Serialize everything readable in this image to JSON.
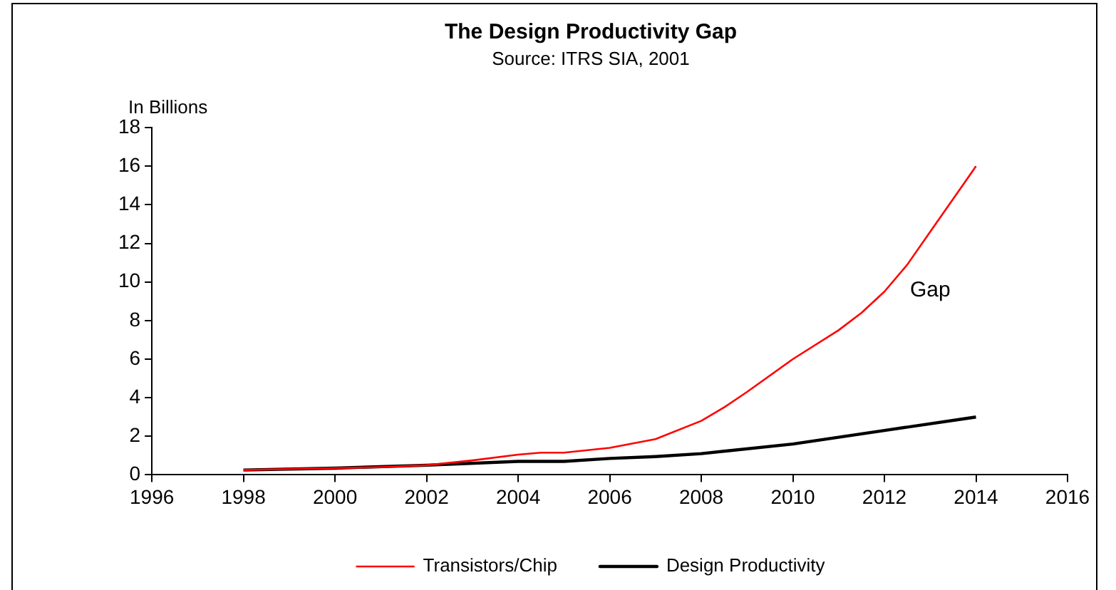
{
  "chart_data": {
    "type": "line",
    "title": "The Design Productivity Gap",
    "subtitle": "Source: ITRS SIA, 2001",
    "ylabel": "In Billions",
    "x": [
      1998,
      1999,
      2000,
      2001,
      2002,
      2003,
      2004,
      2004.5,
      2005,
      2006,
      2007,
      2008,
      2008.5,
      2009,
      2010,
      2011,
      2011.5,
      2012,
      2012.5,
      2013,
      2014
    ],
    "series": [
      {
        "name": "Transistors/Chip",
        "color": "#ff0000",
        "values": [
          0.25,
          0.3,
          0.35,
          0.4,
          0.5,
          0.75,
          1.05,
          1.15,
          1.15,
          1.4,
          1.85,
          2.8,
          3.5,
          4.3,
          6.0,
          7.5,
          8.4,
          9.5,
          10.9,
          12.6,
          16.0
        ]
      },
      {
        "name": "Design Productivity",
        "color": "#000000",
        "x": [
          1998,
          2000,
          2002,
          2004,
          2005,
          2006,
          2007,
          2008,
          2010,
          2012,
          2014
        ],
        "values": [
          0.25,
          0.35,
          0.5,
          0.7,
          0.7,
          0.85,
          0.95,
          1.1,
          1.6,
          2.3,
          3.0
        ]
      }
    ],
    "xlim": [
      1996,
      2016
    ],
    "xticks": [
      1996,
      1998,
      2000,
      2002,
      2004,
      2006,
      2008,
      2010,
      2012,
      2014,
      2016
    ],
    "ylim": [
      0,
      18
    ],
    "yticks": [
      0,
      2,
      4,
      6,
      8,
      10,
      12,
      14,
      16,
      18
    ],
    "annotations": [
      "Gap"
    ],
    "grid": false,
    "legend": "bottom",
    "marker": "none",
    "line_style": "solid"
  }
}
